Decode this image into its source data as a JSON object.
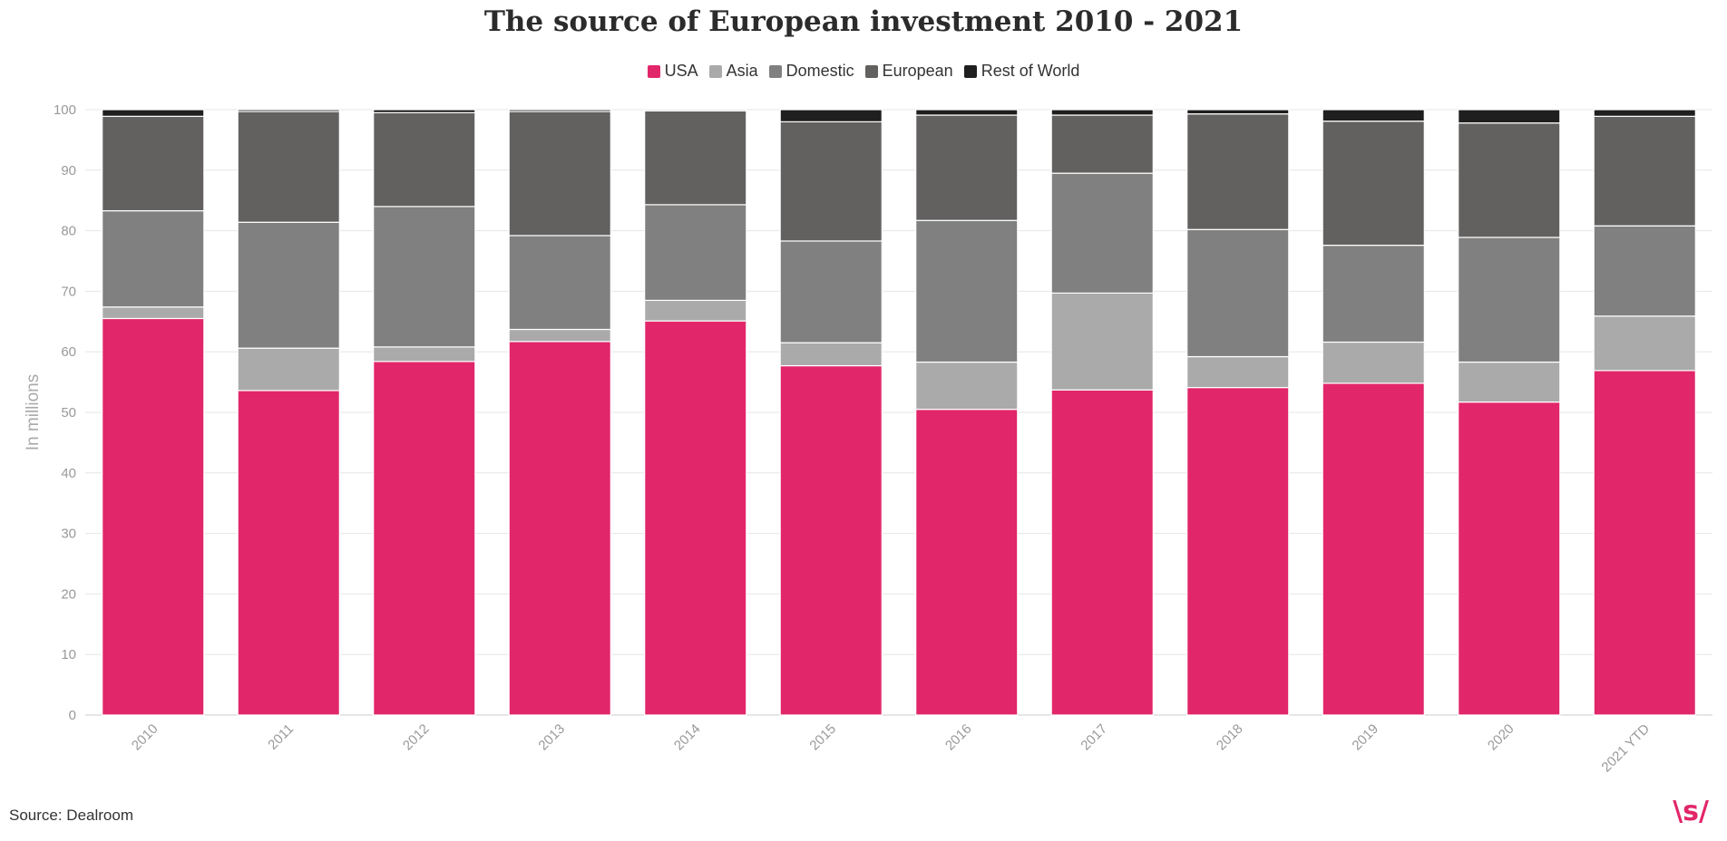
{
  "chart_data": {
    "type": "bar",
    "stacked": true,
    "title": "The source of European investment 2010 - 2021",
    "ylabel": "In millions",
    "xlabel": "",
    "ylim": [
      0,
      100
    ],
    "yticks": [
      0,
      10,
      20,
      30,
      40,
      50,
      60,
      70,
      80,
      90,
      100
    ],
    "legend_position": "top-center",
    "grid": true,
    "categories": [
      "2010",
      "2011",
      "2012",
      "2013",
      "2014",
      "2015",
      "2016",
      "2017",
      "2018",
      "2019",
      "2020",
      "2021 YTD"
    ],
    "series": [
      {
        "name": "USA",
        "color": "#e2266a",
        "values": [
          65.5,
          53.6,
          58.4,
          61.7,
          65.1,
          57.7,
          50.5,
          53.7,
          54.1,
          54.8,
          51.7,
          56.9
        ]
      },
      {
        "name": "Asia",
        "color": "#aaaaaa",
        "values": [
          1.9,
          7.0,
          2.4,
          2.0,
          3.4,
          3.8,
          7.8,
          16.0,
          5.1,
          6.8,
          6.6,
          9.0
        ]
      },
      {
        "name": "Domestic",
        "color": "#808080",
        "values": [
          15.9,
          20.8,
          23.2,
          15.5,
          15.8,
          16.8,
          23.4,
          19.8,
          21.0,
          16.0,
          20.6,
          14.9
        ]
      },
      {
        "name": "European",
        "color": "#636060",
        "values": [
          15.6,
          18.3,
          15.5,
          20.5,
          15.5,
          19.7,
          17.4,
          9.6,
          19.1,
          20.5,
          18.9,
          18.1
        ]
      },
      {
        "name": "Rest of World",
        "color": "#1f1f1f",
        "values": [
          1.1,
          0.3,
          0.5,
          0.3,
          0.2,
          2.0,
          0.9,
          0.9,
          0.7,
          1.9,
          2.2,
          1.1
        ]
      }
    ]
  },
  "source": "Source: Dealroom",
  "logo": "\\s/"
}
